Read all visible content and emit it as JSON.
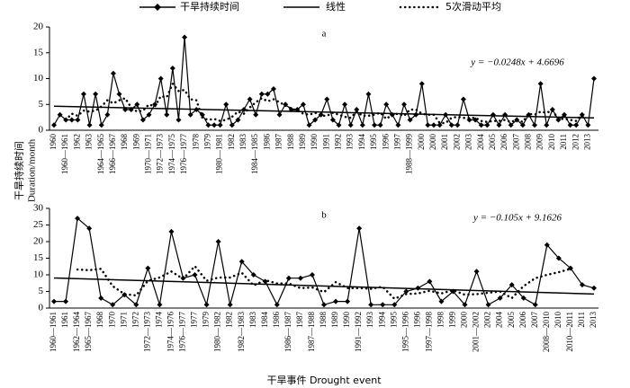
{
  "figure": {
    "y_label": [
      "干旱持续时间",
      "Duration/month"
    ],
    "x_label": "干旱事件 Drought event"
  },
  "chart_data": [
    {
      "type": "line",
      "label": "a",
      "categories": [
        "1960",
        null,
        "1960—1961",
        null,
        "1962",
        null,
        "1963",
        null,
        "1964—1965",
        null,
        "1966—1967",
        null,
        "1968",
        null,
        "1969",
        null,
        "1970—1971",
        null,
        "1972—1973",
        null,
        "1974—1975",
        null,
        "1976—1977",
        null,
        "1978",
        null,
        "1979",
        null,
        "1980—1981",
        null,
        "1982",
        null,
        "1983",
        null,
        "1984—1985",
        null,
        "1986",
        null,
        "1987",
        null,
        "1988",
        null,
        "1989",
        null,
        "1990",
        null,
        "1991",
        null,
        "1992",
        null,
        "1993",
        null,
        "1994",
        null,
        "1995",
        null,
        "1996",
        null,
        "1997",
        null,
        "1988—1999",
        null,
        "2000",
        null,
        "2000",
        null,
        "2001",
        null,
        "2002",
        null,
        "2003",
        null,
        "2004",
        null,
        "2005",
        null,
        "2006",
        null,
        "2007",
        null,
        "2008",
        null,
        "2009",
        null,
        "2010",
        null,
        "2011",
        null,
        "2012",
        null,
        "2013",
        null
      ],
      "series": [
        {
          "name": "干旱持续时间",
          "color": "#000000",
          "values": [
            1,
            3,
            2,
            2,
            2,
            7,
            1,
            7,
            1,
            3,
            11,
            7,
            4,
            4,
            5,
            2,
            3,
            5,
            10,
            3,
            12,
            2,
            18,
            3,
            4,
            3,
            1,
            1,
            1,
            5,
            1,
            2,
            4,
            6,
            3,
            7,
            7,
            8,
            3,
            5,
            4,
            4,
            5,
            1,
            2,
            3,
            6,
            2,
            1,
            5,
            1,
            4,
            1,
            7,
            1,
            1,
            5,
            3,
            1,
            5,
            2,
            3,
            9,
            1,
            1,
            1,
            3,
            1,
            1,
            6,
            2,
            2,
            1,
            1,
            3,
            1,
            3,
            1,
            2,
            1,
            3,
            1,
            9,
            1,
            4,
            2,
            3,
            1,
            1,
            3,
            1,
            10
          ]
        },
        {
          "name": "5次滑动平均",
          "color": "#000000",
          "values": [
            null,
            null,
            2,
            3.2,
            2.8,
            3.8,
            3.6,
            3.8,
            4.6,
            5.8,
            5.2,
            5.8,
            6.2,
            4.4,
            3.6,
            3.8,
            5,
            4.6,
            6.6,
            6.4,
            9,
            7.6,
            7.8,
            6,
            5.8,
            2.4,
            2,
            2.2,
            1.8,
            2,
            2.6,
            3.6,
            3.2,
            4.4,
            5.4,
            6.2,
            5.6,
            6,
            5.4,
            4.8,
            4.2,
            3.8,
            3.2,
            3,
            3.4,
            2.8,
            2.8,
            3.4,
            3,
            2.6,
            2.4,
            3.6,
            2.8,
            2.8,
            3,
            3.4,
            2.2,
            3,
            3.2,
            2.8,
            4,
            4,
            3.2,
            3,
            3,
            1.4,
            1.4,
            2.4,
            2.6,
            2.4,
            2.4,
            2.4,
            1.8,
            1.6,
            1.8,
            1.8,
            2,
            1.6,
            2,
            1.6,
            3.2,
            3,
            3.6,
            3.4,
            3.8,
            2.2,
            2.2,
            2,
            1.8,
            3.2,
            null,
            null
          ]
        }
      ],
      "trendline": {
        "name": "线性",
        "label": "y = −0.0248x + 4.6696",
        "slope": -0.0248,
        "intercept": 4.6696
      },
      "ylim": [
        0,
        20
      ],
      "yticks": [
        0,
        5,
        10,
        15,
        20
      ]
    },
    {
      "type": "line",
      "label": "b",
      "categories": [
        "1960—1961",
        "1961",
        "1962—1964",
        "1965—1967",
        "1968",
        "1970",
        "1971",
        "1972",
        "1972—1973",
        "1974",
        "1974—1976",
        "1976—1977",
        "1977",
        "1979",
        "1980—1982",
        "1982",
        "1982—1983",
        "1983",
        "1984",
        "1986",
        "1986—1987",
        "1987",
        "1987—1988",
        "1988",
        "1989",
        "1990",
        "1991—1992",
        "1993",
        "1994",
        "1995",
        "1995—1996",
        "1996",
        "1997—1998",
        "1998",
        "1999",
        "2000",
        "2001—2002",
        "2002",
        "2004",
        "2005",
        "2006",
        "2007",
        "2008—2010",
        "2010",
        "2010—2011",
        "2011",
        "2013"
      ],
      "series": [
        {
          "color": "#000000",
          "values": [
            2,
            2,
            27,
            24,
            3,
            1,
            4,
            1,
            12,
            1,
            23,
            9,
            10,
            1,
            20,
            1,
            14,
            10,
            8,
            1,
            9,
            9,
            10,
            1,
            2,
            2,
            24,
            1,
            1,
            1,
            5,
            6,
            8,
            2,
            5,
            1,
            11,
            1,
            3,
            7,
            3,
            1,
            19,
            15,
            12,
            7,
            6
          ]
        },
        {
          "color": "#000000",
          "values": [
            null,
            null,
            11.6,
            11.4,
            11.8,
            6.6,
            4.2,
            3.8,
            8.2,
            9.2,
            11,
            8.8,
            12.6,
            8.2,
            9.2,
            9.2,
            10.6,
            6.8,
            8.4,
            7.4,
            7.4,
            6,
            6.2,
            4.8,
            7.8,
            6,
            6,
            5.8,
            6.4,
            2.8,
            4.2,
            4.4,
            5.2,
            4.4,
            5.4,
            4,
            4.2,
            4.6,
            5,
            3,
            6.6,
            9,
            10,
            10.8,
            11.8,
            null,
            null
          ]
        }
      ],
      "trendline": {
        "label": "y = −0.105x + 9.1626",
        "slope": -0.105,
        "intercept": 9.1626
      },
      "ylim": [
        0,
        30
      ],
      "yticks": [
        0,
        5,
        10,
        15,
        20,
        25,
        30
      ]
    }
  ]
}
